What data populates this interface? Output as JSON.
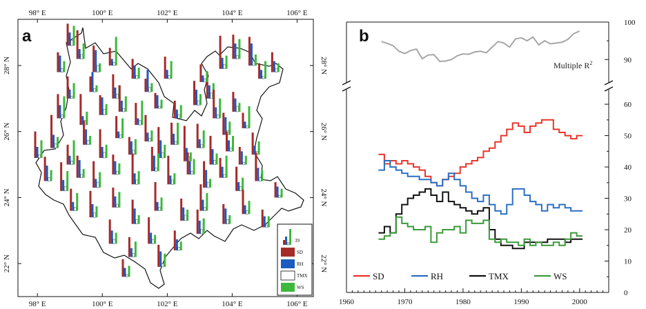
{
  "chart_data": [
    {
      "panel": "a",
      "type": "map",
      "x_ticks": [
        {
          "value": 98,
          "label": "98° E"
        },
        {
          "value": 100,
          "label": "100° E"
        },
        {
          "value": 102,
          "label": "102° E"
        },
        {
          "value": 104,
          "label": "104° E"
        },
        {
          "value": 106,
          "label": "106° E"
        }
      ],
      "y_ticks": [
        {
          "value": 22,
          "label": "22° N"
        },
        {
          "value": 24,
          "label": "24° N"
        },
        {
          "value": 26,
          "label": "26° N"
        },
        {
          "value": 28,
          "label": "28° N"
        }
      ],
      "xlim": [
        97.4,
        106.5
      ],
      "ylim": [
        21.0,
        29.4
      ],
      "legend": {
        "scale_label": "39",
        "entries": [
          {
            "name": "SD",
            "color": "#a52a2a"
          },
          {
            "name": "RH",
            "color": "#1c5bbf"
          },
          {
            "name": "TMX",
            "color": "#ffffff"
          },
          {
            "name": "WS",
            "color": "#3cb93c"
          }
        ]
      },
      "stations": [
        [
          98.9,
          28.6,
          20,
          12,
          5,
          18
        ],
        [
          99.2,
          28.2,
          26,
          9,
          4,
          14
        ],
        [
          98.6,
          27.8,
          18,
          15,
          3,
          10
        ],
        [
          99.7,
          27.8,
          24,
          20,
          6,
          8
        ],
        [
          100.2,
          28.0,
          16,
          6,
          3,
          26
        ],
        [
          98.9,
          27.0,
          20,
          8,
          2,
          14
        ],
        [
          99.6,
          27.2,
          14,
          18,
          3,
          6
        ],
        [
          100.3,
          27.0,
          22,
          10,
          4,
          12
        ],
        [
          100.9,
          27.6,
          18,
          12,
          3,
          10
        ],
        [
          101.3,
          27.2,
          12,
          20,
          4,
          8
        ],
        [
          101.9,
          27.6,
          20,
          8,
          3,
          16
        ],
        [
          103.2,
          27.0,
          24,
          12,
          5,
          14
        ],
        [
          103.6,
          27.9,
          30,
          10,
          4,
          12
        ],
        [
          104.0,
          28.2,
          22,
          14,
          3,
          18
        ],
        [
          104.5,
          28.0,
          26,
          20,
          4,
          10
        ],
        [
          104.8,
          27.6,
          14,
          8,
          2,
          16
        ],
        [
          105.2,
          27.8,
          18,
          10,
          3,
          8
        ],
        [
          103.0,
          27.5,
          16,
          6,
          3,
          10
        ],
        [
          98.6,
          26.4,
          22,
          12,
          3,
          20
        ],
        [
          99.3,
          26.2,
          28,
          8,
          4,
          12
        ],
        [
          99.9,
          26.5,
          18,
          16,
          5,
          10
        ],
        [
          100.5,
          26.6,
          24,
          10,
          3,
          14
        ],
        [
          101.0,
          26.2,
          20,
          6,
          4,
          22
        ],
        [
          101.6,
          26.7,
          14,
          12,
          2,
          8
        ],
        [
          102.2,
          26.4,
          16,
          8,
          3,
          12
        ],
        [
          102.8,
          26.8,
          22,
          14,
          4,
          10
        ],
        [
          103.4,
          26.4,
          26,
          10,
          3,
          18
        ],
        [
          104.0,
          26.6,
          18,
          12,
          5,
          8
        ],
        [
          104.3,
          26.1,
          14,
          6,
          2,
          20
        ],
        [
          103.7,
          25.9,
          20,
          16,
          4,
          12
        ],
        [
          97.9,
          25.2,
          24,
          10,
          3,
          16
        ],
        [
          98.4,
          25.5,
          30,
          12,
          4,
          10
        ],
        [
          98.9,
          25.0,
          18,
          8,
          3,
          22
        ],
        [
          99.4,
          25.6,
          22,
          14,
          4,
          8
        ],
        [
          99.9,
          25.2,
          26,
          10,
          5,
          12
        ],
        [
          100.4,
          25.8,
          20,
          6,
          3,
          18
        ],
        [
          100.8,
          25.3,
          16,
          12,
          4,
          14
        ],
        [
          101.3,
          25.7,
          24,
          8,
          3,
          10
        ],
        [
          101.7,
          25.2,
          28,
          16,
          5,
          12
        ],
        [
          102.1,
          25.6,
          20,
          10,
          3,
          20
        ],
        [
          102.5,
          25.1,
          32,
          12,
          4,
          8
        ],
        [
          102.9,
          25.5,
          22,
          8,
          3,
          16
        ],
        [
          103.3,
          25.0,
          26,
          14,
          4,
          10
        ],
        [
          103.8,
          25.4,
          18,
          10,
          3,
          14
        ],
        [
          104.2,
          25.0,
          16,
          12,
          2,
          8
        ],
        [
          104.6,
          25.3,
          20,
          8,
          3,
          12
        ],
        [
          98.2,
          24.5,
          22,
          14,
          3,
          10
        ],
        [
          98.7,
          24.2,
          26,
          10,
          4,
          18
        ],
        [
          99.2,
          24.6,
          20,
          16,
          3,
          8
        ],
        [
          99.7,
          24.3,
          24,
          8,
          5,
          14
        ],
        [
          100.3,
          24.7,
          18,
          12,
          3,
          10
        ],
        [
          100.9,
          24.4,
          28,
          10,
          4,
          12
        ],
        [
          101.5,
          24.8,
          22,
          14,
          3,
          16
        ],
        [
          102.0,
          24.4,
          26,
          8,
          4,
          10
        ],
        [
          102.6,
          24.7,
          20,
          12,
          3,
          14
        ],
        [
          103.1,
          24.3,
          24,
          16,
          5,
          8
        ],
        [
          103.6,
          24.6,
          18,
          10,
          3,
          20
        ],
        [
          104.1,
          24.2,
          22,
          8,
          4,
          12
        ],
        [
          104.7,
          24.5,
          26,
          12,
          3,
          10
        ],
        [
          105.3,
          24.0,
          14,
          10,
          2,
          8
        ],
        [
          99.0,
          23.6,
          20,
          8,
          3,
          16
        ],
        [
          99.6,
          23.4,
          24,
          12,
          4,
          10
        ],
        [
          100.3,
          23.7,
          18,
          10,
          3,
          14
        ],
        [
          100.9,
          23.2,
          22,
          14,
          4,
          8
        ],
        [
          101.6,
          23.6,
          26,
          8,
          3,
          12
        ],
        [
          102.4,
          23.3,
          20,
          12,
          5,
          10
        ],
        [
          103.0,
          23.6,
          24,
          10,
          3,
          16
        ],
        [
          103.7,
          23.2,
          18,
          14,
          4,
          8
        ],
        [
          104.3,
          23.5,
          22,
          8,
          3,
          12
        ],
        [
          104.9,
          23.1,
          16,
          10,
          2,
          10
        ],
        [
          100.2,
          22.6,
          22,
          12,
          4,
          10
        ],
        [
          100.8,
          22.2,
          18,
          8,
          3,
          14
        ],
        [
          101.4,
          22.6,
          24,
          10,
          4,
          8
        ],
        [
          101.7,
          21.9,
          20,
          14,
          3,
          12
        ],
        [
          100.6,
          21.6,
          16,
          8,
          2,
          10
        ],
        [
          102.2,
          22.4,
          18,
          10,
          3,
          8
        ],
        [
          102.9,
          22.9,
          22,
          12,
          4,
          14
        ]
      ]
    },
    {
      "panel": "b",
      "type": "line",
      "x_ticks": [
        1960,
        1970,
        1980,
        1990,
        2000
      ],
      "xlim": [
        1960,
        2005
      ],
      "y_ticks_lower": [
        0,
        10,
        20,
        30,
        40,
        50,
        60
      ],
      "ylim_lower": [
        0,
        62
      ],
      "y_ticks_upper": [
        90,
        100
      ],
      "ylim_upper": [
        86,
        100
      ],
      "legend_position": "bottom",
      "upper_series": {
        "name": "Multiple R",
        "superscript": "2",
        "color": "#a6a6a6",
        "x": [
          1966,
          1967,
          1968,
          1969,
          1970,
          1971,
          1972,
          1973,
          1974,
          1975,
          1976,
          1977,
          1978,
          1979,
          1980,
          1981,
          1982,
          1983,
          1984,
          1985,
          1986,
          1987,
          1988,
          1989,
          1990,
          1991,
          1992,
          1993,
          1994,
          1995,
          1996,
          1997,
          1998,
          1999,
          2000
        ],
        "values": [
          94.8,
          94.3,
          93.7,
          92.2,
          91.6,
          92.4,
          92.8,
          90.2,
          91.2,
          91.3,
          89.5,
          89.6,
          90.0,
          91.0,
          91.5,
          91.4,
          92.0,
          92.2,
          91.8,
          93.3,
          94.8,
          94.4,
          93.3,
          95.5,
          95.8,
          95.0,
          96.0,
          93.9,
          95.0,
          94.2,
          94.4,
          94.6,
          95.4,
          96.9,
          97.6
        ]
      },
      "series": [
        {
          "name": "SD",
          "color": "#e8352a",
          "x": [
            1966,
            1967,
            1968,
            1969,
            1970,
            1971,
            1972,
            1973,
            1974,
            1975,
            1976,
            1977,
            1978,
            1979,
            1980,
            1981,
            1982,
            1983,
            1984,
            1985,
            1986,
            1987,
            1988,
            1989,
            1990,
            1991,
            1992,
            1993,
            1994,
            1995,
            1996,
            1997,
            1998,
            1999,
            2000
          ],
          "values": [
            44,
            41,
            42,
            41,
            42,
            41,
            40,
            39,
            37,
            35,
            34,
            36,
            37,
            38,
            40,
            41,
            42,
            43,
            45,
            46,
            48,
            50,
            52,
            54,
            53,
            51,
            53,
            54,
            55,
            55,
            52,
            51,
            50,
            49,
            50
          ]
        },
        {
          "name": "RH",
          "color": "#2a6fc2",
          "x": [
            1966,
            1967,
            1968,
            1969,
            1970,
            1971,
            1972,
            1973,
            1974,
            1975,
            1976,
            1977,
            1978,
            1979,
            1980,
            1981,
            1982,
            1983,
            1984,
            1985,
            1986,
            1987,
            1988,
            1989,
            1990,
            1991,
            1992,
            1993,
            1994,
            1995,
            1996,
            1997,
            1998,
            1999,
            2000
          ],
          "values": [
            39,
            42,
            40,
            39,
            38,
            37,
            37,
            36,
            36,
            35,
            34,
            36,
            38,
            36,
            34,
            32,
            30,
            29,
            31,
            28,
            26,
            25,
            28,
            33,
            33,
            31,
            29,
            28,
            26,
            28,
            27,
            28,
            27,
            26,
            26
          ]
        },
        {
          "name": "TMX",
          "color": "#111111",
          "x": [
            1966,
            1967,
            1968,
            1969,
            1970,
            1971,
            1972,
            1973,
            1974,
            1975,
            1976,
            1977,
            1978,
            1979,
            1980,
            1981,
            1982,
            1983,
            1984,
            1985,
            1986,
            1987,
            1988,
            1989,
            1990,
            1991,
            1992,
            1993,
            1994,
            1995,
            1996,
            1997,
            1998,
            1999,
            2000
          ],
          "values": [
            19,
            21,
            19,
            25,
            28,
            30,
            31,
            32,
            33,
            31,
            29,
            32,
            29,
            28,
            27,
            26,
            25,
            26,
            27,
            20,
            17,
            15,
            15,
            14,
            14,
            16,
            16,
            16,
            16,
            17,
            17,
            17,
            16,
            17,
            17
          ]
        },
        {
          "name": "WS",
          "color": "#3a9a3a",
          "x": [
            1966,
            1967,
            1968,
            1969,
            1970,
            1971,
            1972,
            1973,
            1974,
            1975,
            1976,
            1977,
            1978,
            1979,
            1980,
            1981,
            1982,
            1983,
            1984,
            1985,
            1986,
            1987,
            1988,
            1989,
            1990,
            1991,
            1992,
            1993,
            1994,
            1995,
            1996,
            1997,
            1998,
            1999,
            2000
          ],
          "values": [
            17,
            18,
            19,
            24,
            22,
            21,
            20,
            20,
            21,
            16,
            19,
            20,
            20,
            21,
            19,
            23,
            22,
            22,
            23,
            17,
            16,
            17,
            16,
            16,
            15,
            17,
            15,
            16,
            15,
            15,
            16,
            15,
            17,
            19,
            18
          ]
        }
      ]
    }
  ]
}
